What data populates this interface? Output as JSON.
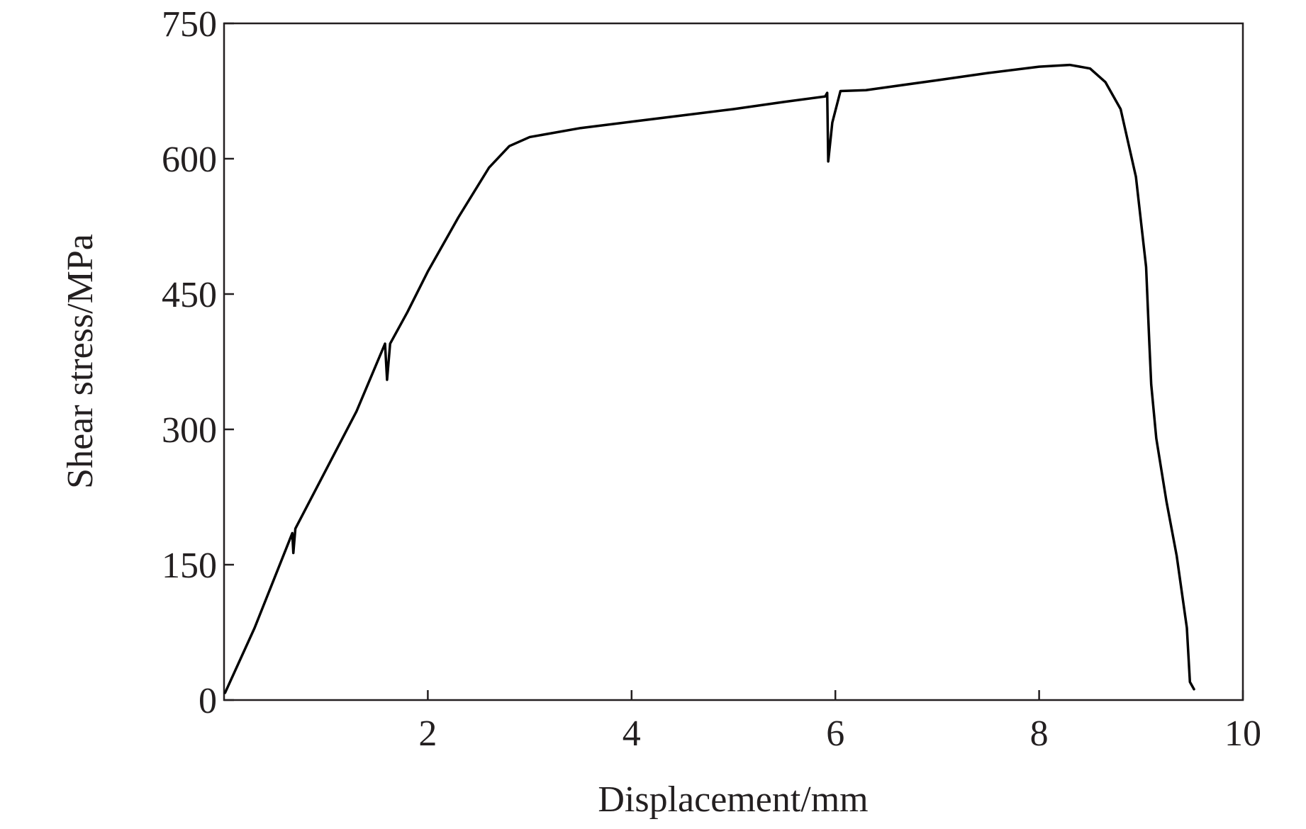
{
  "chart_data": {
    "type": "line",
    "x_label": "Displacement/mm",
    "y_label": "Shear stress/MPa",
    "xlim": [
      0,
      10
    ],
    "xticks": [
      2,
      4,
      6,
      8,
      10
    ],
    "ylim": [
      0,
      750
    ],
    "yticks": [
      0,
      150,
      300,
      450,
      600,
      750
    ],
    "series": [
      {
        "color": "#000000",
        "x": [
          0.01,
          0.3,
          0.67,
          0.68,
          0.7,
          1.0,
          1.3,
          1.58,
          1.6,
          1.63,
          1.8,
          2.0,
          2.3,
          2.6,
          2.8,
          3.0,
          3.5,
          4.0,
          4.5,
          5.0,
          5.5,
          5.9,
          5.92,
          5.93,
          5.97,
          6.05,
          6.3,
          7.0,
          7.5,
          8.0,
          8.3,
          8.5,
          8.65,
          8.8,
          8.95,
          9.05,
          9.08,
          9.1,
          9.15,
          9.25,
          9.35,
          9.45,
          9.48,
          9.52
        ],
        "values": [
          8,
          80,
          185,
          163,
          190,
          255,
          320,
          395,
          355,
          395,
          430,
          475,
          535,
          590,
          614,
          624,
          634,
          641,
          648,
          655,
          663,
          669,
          673,
          597,
          640,
          675,
          676,
          687,
          695,
          702,
          704,
          700,
          685,
          655,
          580,
          480,
          400,
          350,
          290,
          220,
          160,
          80,
          20,
          12
        ]
      }
    ]
  }
}
